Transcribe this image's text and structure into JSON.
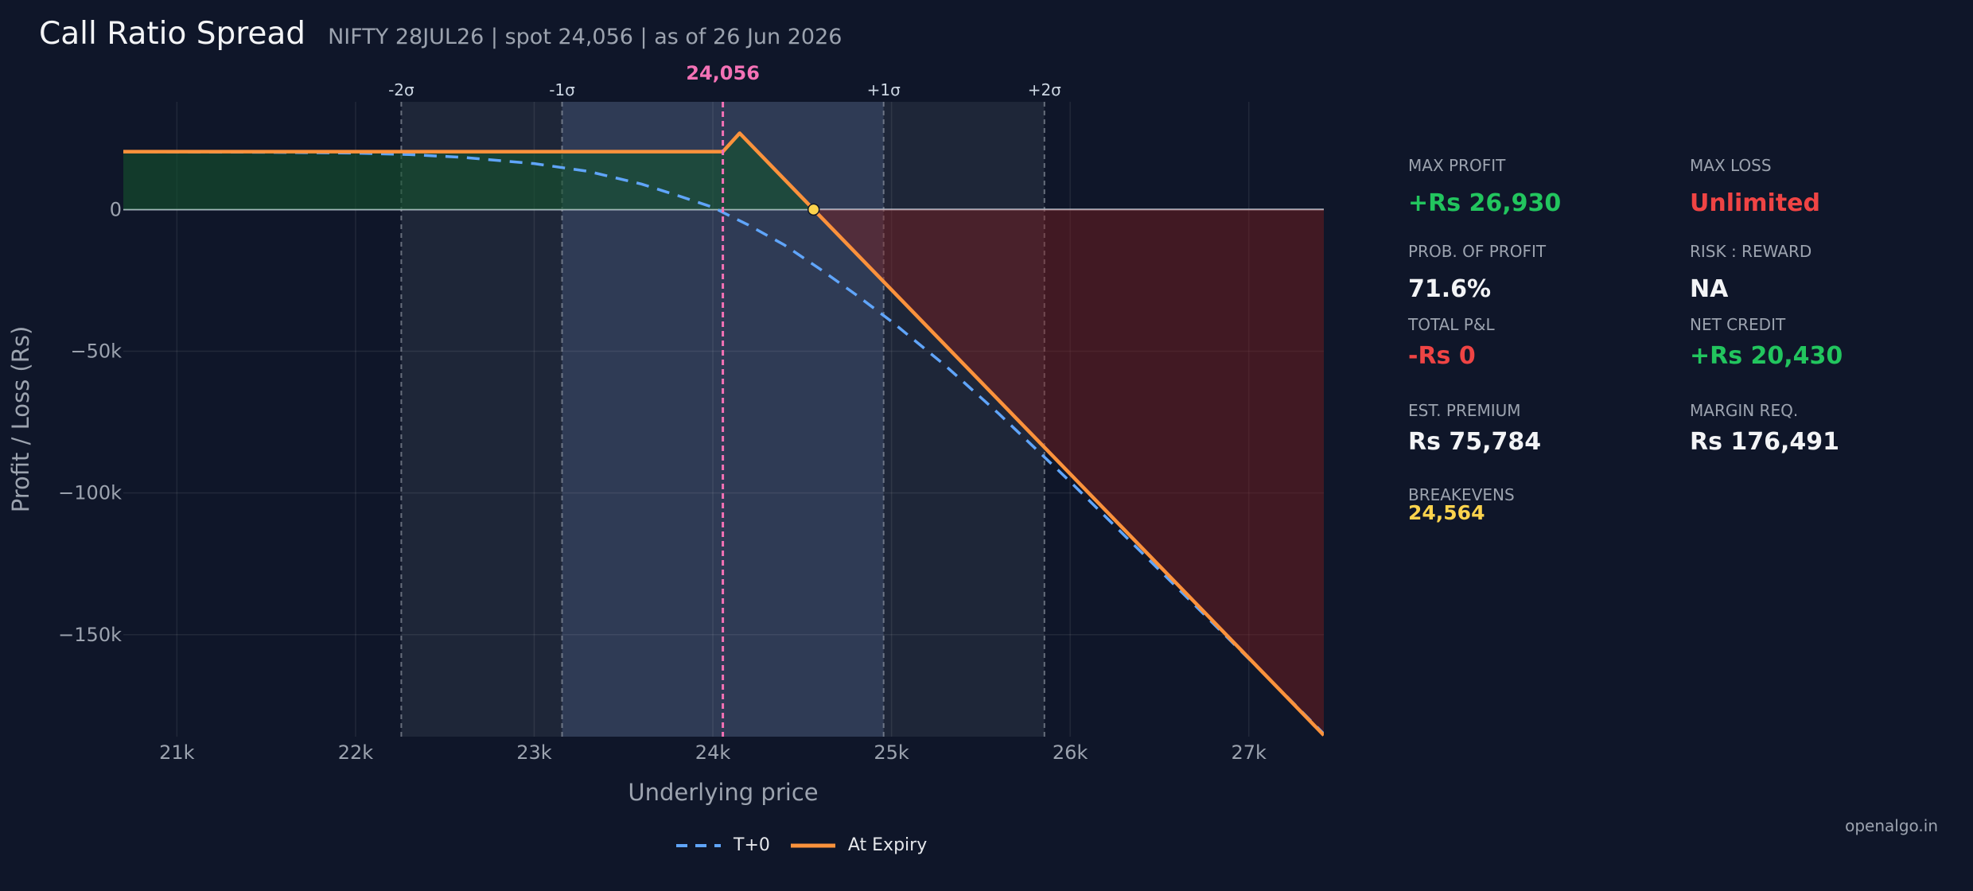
{
  "header": {
    "title": "Call Ratio Spread",
    "subtitle": "NIFTY 28JUL26  |  spot 24,056  |  as of 26 Jun 2026"
  },
  "stats": {
    "max_profit_label": "MAX PROFIT",
    "max_profit_value": "+Rs 26,930",
    "max_loss_label": "MAX LOSS",
    "max_loss_value": "Unlimited",
    "pop_label": "PROB. OF PROFIT",
    "pop_value": "71.6%",
    "rr_label": "RISK : REWARD",
    "rr_value": "NA",
    "total_pnl_label": "TOTAL P&L",
    "total_pnl_value": "-Rs 0",
    "net_credit_label": "NET CREDIT",
    "net_credit_value": "+Rs 20,430",
    "est_premium_label": "EST. PREMIUM",
    "est_premium_value": "Rs 75,784",
    "margin_label": "MARGIN REQ.",
    "margin_value": "Rs 176,491",
    "breakevens_label": "BREAKEVENS",
    "breakevens_value": "24,564"
  },
  "watermark": "openalgo.in",
  "colors": {
    "background": "#0f1629",
    "expiry_line": "#fb923c",
    "t0_line": "#60a5fa",
    "spot_line": "#f472b6",
    "profit_fill": "#14532d",
    "loss_fill": "#7f1d1d",
    "positive": "#22c55e",
    "negative": "#ef4444",
    "breakeven": "#fcd34d"
  },
  "chart_data": {
    "type": "line",
    "xlabel": "Underlying price",
    "ylabel": "Profit / Loss (Rs)",
    "xlim": [
      20700,
      27420
    ],
    "ylim": [
      -186000,
      38000
    ],
    "x_ticks": [
      21000,
      22000,
      23000,
      24000,
      25000,
      26000,
      27000
    ],
    "x_tick_labels": [
      "21k",
      "22k",
      "23k",
      "24k",
      "25k",
      "26k",
      "27k"
    ],
    "y_ticks": [
      0,
      -50000,
      -100000,
      -150000
    ],
    "y_tick_labels": [
      "0",
      "−50k",
      "−100k",
      "−150k"
    ],
    "spot": 24056,
    "spot_label": "24,056",
    "breakeven": 24564,
    "sigma_bands": [
      {
        "label": "-2σ",
        "value": 22256
      },
      {
        "label": "-1σ",
        "value": 23156
      },
      {
        "label": "+1σ",
        "value": 24956
      },
      {
        "label": "+2σ",
        "value": 25856
      }
    ],
    "series": [
      {
        "name": "T+0",
        "style": "dashed",
        "x": [
          20700,
          21500,
          22000,
          22300,
          22600,
          23000,
          23300,
          23600,
          23800,
          24000,
          24056,
          24200,
          24400,
          24600,
          24800,
          25000,
          25300,
          25600,
          26000,
          26400,
          26800,
          27200,
          27420
        ],
        "y": [
          20400,
          20200,
          19900,
          19400,
          18400,
          16200,
          13500,
          9000,
          5000,
          800,
          -1000,
          -5500,
          -12500,
          -21000,
          -30000,
          -39500,
          -55000,
          -72000,
          -96000,
          -121000,
          -146000,
          -171000,
          -185000
        ]
      },
      {
        "name": "At Expiry",
        "style": "solid",
        "x": [
          20700,
          24056,
          24150,
          24564,
          27420
        ],
        "y": [
          20430,
          20430,
          26930,
          0,
          -185500
        ]
      }
    ],
    "grid": true,
    "legend_position": "bottom-center"
  }
}
